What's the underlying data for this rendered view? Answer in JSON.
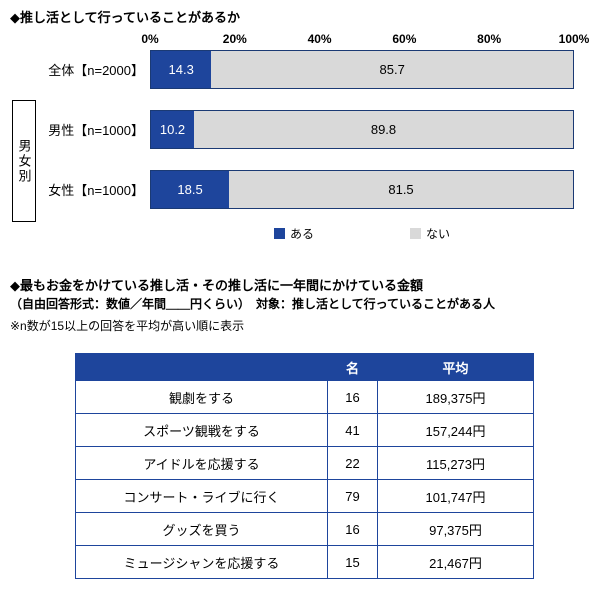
{
  "colors": {
    "primary": "#1E459C",
    "secondary": "#D9D9D9",
    "bar_border": "#1b3a74"
  },
  "chart_data": [
    {
      "type": "bar",
      "orientation": "horizontal_stacked",
      "title": "◆推し活として行っていることがあるか",
      "categories": [
        "全体【n=2000】",
        "男性【n=1000】",
        "女性【n=1000】"
      ],
      "group_label": "男女別",
      "series": [
        {
          "name": "ある",
          "color": "#1E459C",
          "values": [
            14.3,
            10.2,
            18.5
          ]
        },
        {
          "name": "ない",
          "color": "#D9D9D9",
          "values": [
            85.7,
            89.8,
            81.5
          ]
        }
      ],
      "xlim": [
        0,
        100
      ],
      "x_ticks": [
        "0%",
        "20%",
        "40%",
        "60%",
        "80%",
        "100%"
      ],
      "grid": false,
      "legend_position": "bottom"
    },
    {
      "type": "table",
      "title": "◆最もお金をかけている推し活・その推し活に一年間にかけている金額",
      "subtitle": "（自由回答形式：数値／年間＿＿円くらい）　対象：推し活として行っていることがある人",
      "note": "※n数が15以上の回答を平均が高い順に表示",
      "headers": [
        "",
        "名",
        "平均"
      ],
      "rows": [
        [
          "観劇をする",
          "16",
          "189,375円"
        ],
        [
          "スポーツ観戦をする",
          "41",
          "157,244円"
        ],
        [
          "アイドルを応援する",
          "22",
          "115,273円"
        ],
        [
          "コンサート・ライブに行く",
          "79",
          "101,747円"
        ],
        [
          "グッズを買う",
          "16",
          "97,375円"
        ],
        [
          "ミュージシャンを応援する",
          "15",
          "21,467円"
        ]
      ]
    }
  ]
}
